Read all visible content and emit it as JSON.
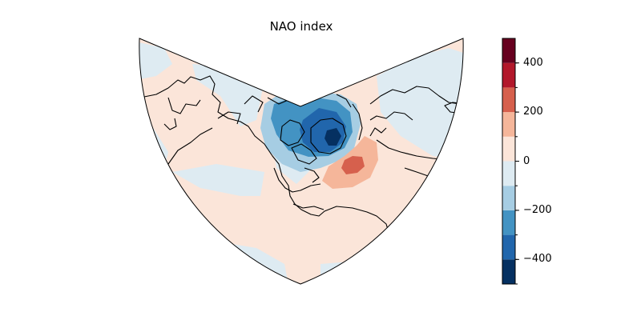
{
  "title": "NAO index",
  "colors": {
    "neutral_positive": "#fbe5d9",
    "neutral_negative": "#deebf2",
    "ocean_negative": "#a6cde3",
    "mid_negative": "#4393c3",
    "strong_negative": "#2166ac",
    "extreme_negative": "#053061",
    "light_positive": "#f5b69a",
    "mid_positive": "#d6604d",
    "strong_positive": "#b2182b",
    "extreme_positive": "#67001f",
    "coastline": "#000000"
  },
  "colorbar": {
    "min": -500,
    "max": 500,
    "bands": [
      {
        "from": -500,
        "to": -400,
        "color": "#053061"
      },
      {
        "from": -400,
        "to": -300,
        "color": "#2166ac"
      },
      {
        "from": -300,
        "to": -200,
        "color": "#4393c3"
      },
      {
        "from": -200,
        "to": -100,
        "color": "#a6cde3"
      },
      {
        "from": -100,
        "to": 0,
        "color": "#deebf2"
      },
      {
        "from": 0,
        "to": 100,
        "color": "#fbe5d9"
      },
      {
        "from": 100,
        "to": 200,
        "color": "#f5b69a"
      },
      {
        "from": 200,
        "to": 300,
        "color": "#d6604d"
      },
      {
        "from": 300,
        "to": 400,
        "color": "#b2182b"
      },
      {
        "from": 400,
        "to": 500,
        "color": "#67001f"
      }
    ],
    "tick_values": [
      400,
      200,
      0,
      -200,
      -400
    ],
    "tick_labels": [
      "400",
      "200",
      "0",
      "−200",
      "−400"
    ]
  }
}
